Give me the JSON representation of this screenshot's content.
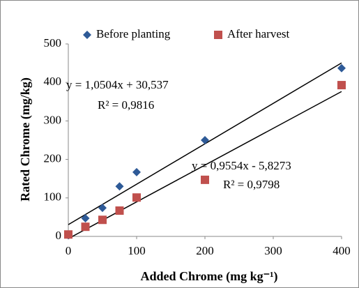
{
  "chart_data": {
    "type": "scatter",
    "xlabel": "Added Chrome (mg kg⁻¹)",
    "ylabel": "Rated Chrome (mg/kg)",
    "xlim": [
      0,
      400
    ],
    "xticks": [
      0,
      100,
      200,
      300,
      400
    ],
    "ylim": [
      0,
      500
    ],
    "yticks": [
      0,
      100,
      200,
      300,
      400,
      500
    ],
    "legend": "top",
    "series": [
      {
        "name": "Before planting",
        "color": "#2e5a97",
        "marker": "diamond",
        "x": [
          0,
          25,
          50,
          75,
          100,
          200,
          400
        ],
        "values": [
          3,
          47,
          74,
          130,
          167,
          250,
          437
        ]
      },
      {
        "name": "After harvest",
        "color": "#c0504d",
        "marker": "square",
        "x": [
          0,
          25,
          50,
          75,
          100,
          200,
          400
        ],
        "values": [
          5,
          25,
          43,
          67,
          101,
          147,
          393
        ]
      }
    ],
    "trendlines": [
      {
        "slope": 1.0504,
        "intercept": 30.537,
        "label": "y = 1,0504x + 30,537",
        "r2": 0.9816,
        "r2_label": "R² = 0,9816"
      },
      {
        "slope": 0.9554,
        "intercept": -5.8273,
        "label": "y = 0,9554x - 5,8273",
        "r2": 0.9798,
        "r2_label": "R² = 0,9798"
      }
    ]
  }
}
